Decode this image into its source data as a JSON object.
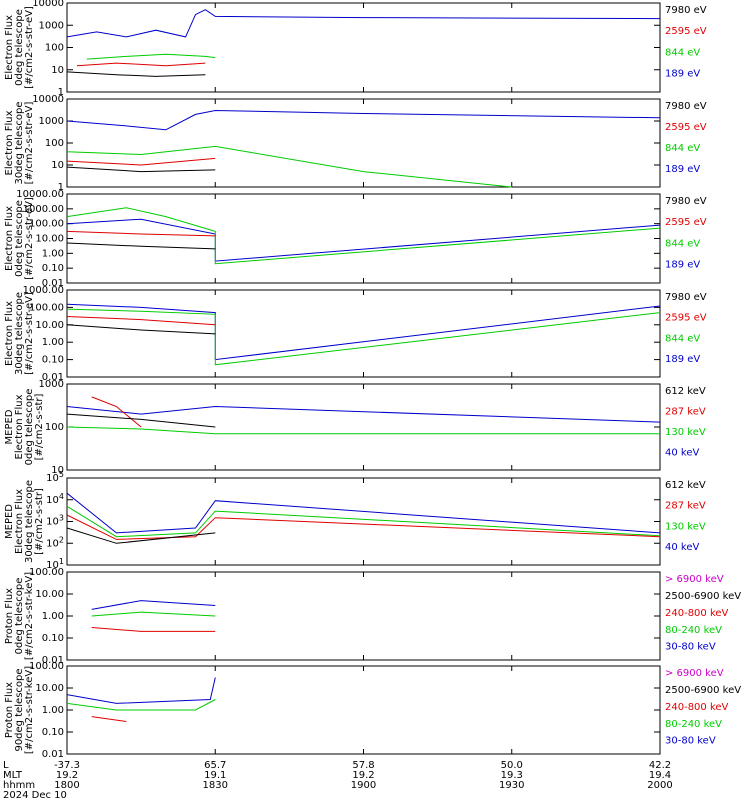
{
  "colors": {
    "black": "#000000",
    "red": "#e00000",
    "green": "#00cc00",
    "blue": "#0000cc",
    "magenta": "#cc00cc"
  },
  "chart_data": [
    {
      "type": "line",
      "ylabel": [
        "Electron Flux",
        "0deg telescope",
        "[#/cm2-s-str-eV]"
      ],
      "scale": "log",
      "ticks": [
        "1",
        "10",
        "100",
        "1000",
        "10000"
      ],
      "ylim": [
        1,
        10000
      ],
      "legend": [
        {
          "label": "7980 eV",
          "color": "black"
        },
        {
          "label": "2595 eV",
          "color": "red"
        },
        {
          "label": "844 eV",
          "color": "green"
        },
        {
          "label": "189 eV",
          "color": "blue"
        }
      ],
      "series": [
        {
          "name": "189 eV",
          "color": "blue",
          "values": [
            [
              1800,
              300
            ],
            [
              1806,
              500
            ],
            [
              1812,
              300
            ],
            [
              1818,
              600
            ],
            [
              1824,
              300
            ],
            [
              1826,
              3000
            ],
            [
              1828,
              5000
            ],
            [
              1830,
              2500
            ],
            [
              1900,
              2200
            ],
            [
              2000,
              2000
            ]
          ]
        },
        {
          "name": "844 eV",
          "color": "green",
          "values": [
            [
              1804,
              30
            ],
            [
              1812,
              40
            ],
            [
              1820,
              50
            ],
            [
              1828,
              40
            ],
            [
              1830,
              35
            ]
          ]
        },
        {
          "name": "2595 eV",
          "color": "red",
          "values": [
            [
              1802,
              15
            ],
            [
              1810,
              20
            ],
            [
              1820,
              15
            ],
            [
              1828,
              20
            ]
          ]
        },
        {
          "name": "7980 eV",
          "color": "black",
          "values": [
            [
              1800,
              8
            ],
            [
              1810,
              6
            ],
            [
              1818,
              5
            ],
            [
              1828,
              6
            ]
          ]
        }
      ]
    },
    {
      "type": "line",
      "ylabel": [
        "Electron Flux",
        "30deg telescope",
        "[#/cm2-s-str-eV]"
      ],
      "scale": "log",
      "ticks": [
        "1",
        "10",
        "100",
        "1000",
        "10000"
      ],
      "ylim": [
        1,
        10000
      ],
      "legend": [
        {
          "label": "7980 eV",
          "color": "black"
        },
        {
          "label": "2595 eV",
          "color": "red"
        },
        {
          "label": "844 eV",
          "color": "green"
        },
        {
          "label": "189 eV",
          "color": "blue"
        }
      ],
      "series": [
        {
          "name": "189 eV",
          "color": "blue",
          "values": [
            [
              1800,
              1000
            ],
            [
              1812,
              600
            ],
            [
              1820,
              400
            ],
            [
              1826,
              2000
            ],
            [
              1830,
              3000
            ],
            [
              1900,
              2200
            ],
            [
              2000,
              1400
            ]
          ]
        },
        {
          "name": "844 eV",
          "color": "green",
          "values": [
            [
              1800,
              40
            ],
            [
              1815,
              30
            ],
            [
              1830,
              70
            ],
            [
              1900,
              5
            ],
            [
              1930,
              1
            ]
          ]
        },
        {
          "name": "2595 eV",
          "color": "red",
          "values": [
            [
              1800,
              15
            ],
            [
              1815,
              10
            ],
            [
              1830,
              20
            ]
          ]
        },
        {
          "name": "7980 eV",
          "color": "black",
          "values": [
            [
              1800,
              8
            ],
            [
              1815,
              5
            ],
            [
              1830,
              6
            ]
          ]
        }
      ]
    },
    {
      "type": "line",
      "ylabel": [
        "Electron Flux",
        "0deg telescope",
        "[#/cm2-s-str-eV]"
      ],
      "scale": "log",
      "ticks": [
        "0.01",
        "0.10",
        "1.00",
        "10.00",
        "100.00",
        "1000.00",
        "10000.00"
      ],
      "ylim": [
        0.01,
        10000
      ],
      "legend": [
        {
          "label": "7980 eV",
          "color": "black"
        },
        {
          "label": "2595 eV",
          "color": "red"
        },
        {
          "label": "844 eV",
          "color": "green"
        },
        {
          "label": "189 eV",
          "color": "blue"
        }
      ],
      "series": [
        {
          "name": "189 eV",
          "color": "blue",
          "values": [
            [
              1800,
              100
            ],
            [
              1815,
              200
            ],
            [
              1830,
              20
            ],
            [
              1830,
              0.3
            ],
            [
              2000,
              80
            ]
          ]
        },
        {
          "name": "844 eV",
          "color": "green",
          "values": [
            [
              1800,
              300
            ],
            [
              1812,
              1200
            ],
            [
              1820,
              300
            ],
            [
              1830,
              30
            ],
            [
              1830,
              0.2
            ],
            [
              2000,
              50
            ]
          ]
        },
        {
          "name": "2595 eV",
          "color": "red",
          "values": [
            [
              1800,
              30
            ],
            [
              1815,
              20
            ],
            [
              1830,
              15
            ]
          ]
        },
        {
          "name": "7980 eV",
          "color": "black",
          "values": [
            [
              1800,
              5
            ],
            [
              1815,
              3
            ],
            [
              1830,
              2
            ]
          ]
        }
      ]
    },
    {
      "type": "line",
      "ylabel": [
        "Electron Flux",
        "30deg telescope",
        "[#/cm2-s-str-eV]"
      ],
      "scale": "log",
      "ticks": [
        "0.01",
        "0.10",
        "1.00",
        "10.00",
        "100.00",
        "1000.00"
      ],
      "ylim": [
        0.01,
        1000
      ],
      "legend": [
        {
          "label": "7980 eV",
          "color": "black"
        },
        {
          "label": "2595 eV",
          "color": "red"
        },
        {
          "label": "844 eV",
          "color": "green"
        },
        {
          "label": "189 eV",
          "color": "blue"
        }
      ],
      "series": [
        {
          "name": "189 eV",
          "color": "blue",
          "values": [
            [
              1800,
              150
            ],
            [
              1815,
              100
            ],
            [
              1830,
              50
            ],
            [
              1830,
              0.1
            ],
            [
              2000,
              120
            ]
          ]
        },
        {
          "name": "844 eV",
          "color": "green",
          "values": [
            [
              1800,
              80
            ],
            [
              1815,
              60
            ],
            [
              1830,
              40
            ],
            [
              1830,
              0.05
            ],
            [
              2000,
              50
            ]
          ]
        },
        {
          "name": "2595 eV",
          "color": "red",
          "values": [
            [
              1800,
              30
            ],
            [
              1815,
              20
            ],
            [
              1830,
              10
            ]
          ]
        },
        {
          "name": "7980 eV",
          "color": "black",
          "values": [
            [
              1800,
              10
            ],
            [
              1815,
              5
            ],
            [
              1830,
              3
            ]
          ]
        }
      ]
    },
    {
      "type": "line",
      "ylabel": [
        "MEPED",
        "Electron Flux",
        "0deg telescope",
        "[#/cm2-s-str]"
      ],
      "scale": "log",
      "ticks": [
        "10",
        "100",
        "1000"
      ],
      "ylim": [
        10,
        1000
      ],
      "legend": [
        {
          "label": "612 keV",
          "color": "black"
        },
        {
          "label": "287 keV",
          "color": "red"
        },
        {
          "label": "130 keV",
          "color": "green"
        },
        {
          "label": "40 keV",
          "color": "blue"
        }
      ],
      "series": [
        {
          "name": "40 keV",
          "color": "blue",
          "values": [
            [
              1800,
              300
            ],
            [
              1815,
              200
            ],
            [
              1830,
              300
            ],
            [
              2000,
              130
            ]
          ]
        },
        {
          "name": "130 keV",
          "color": "green",
          "values": [
            [
              1800,
              100
            ],
            [
              1815,
              90
            ],
            [
              1830,
              70
            ],
            [
              2000,
              70
            ]
          ]
        },
        {
          "name": "287 keV",
          "color": "red",
          "values": [
            [
              1805,
              500
            ],
            [
              1810,
              300
            ],
            [
              1815,
              100
            ]
          ]
        },
        {
          "name": "612 keV",
          "color": "black",
          "values": [
            [
              1800,
              200
            ],
            [
              1815,
              150
            ],
            [
              1830,
              100
            ]
          ]
        }
      ]
    },
    {
      "type": "line",
      "ylabel": [
        "MEPED",
        "Electron Flux",
        "30deg telescope",
        "[#/cm2-s-str]"
      ],
      "scale": "log",
      "ticks": [
        "10^1",
        "10^2",
        "10^3",
        "10^4",
        "10^5"
      ],
      "ylim": [
        10,
        100000
      ],
      "legend": [
        {
          "label": "612 keV",
          "color": "black"
        },
        {
          "label": "287 keV",
          "color": "red"
        },
        {
          "label": "130 keV",
          "color": "green"
        },
        {
          "label": "40 keV",
          "color": "blue"
        }
      ],
      "series": [
        {
          "name": "40 keV",
          "color": "blue",
          "values": [
            [
              1800,
              20000
            ],
            [
              1810,
              300
            ],
            [
              1826,
              500
            ],
            [
              1830,
              9000
            ],
            [
              2000,
              300
            ]
          ]
        },
        {
          "name": "130 keV",
          "color": "green",
          "values": [
            [
              1800,
              5000
            ],
            [
              1810,
              200
            ],
            [
              1826,
              300
            ],
            [
              1830,
              3000
            ],
            [
              2000,
              220
            ]
          ]
        },
        {
          "name": "287 keV",
          "color": "red",
          "values": [
            [
              1800,
              2000
            ],
            [
              1810,
              150
            ],
            [
              1826,
              200
            ],
            [
              1830,
              1500
            ],
            [
              2000,
              200
            ]
          ]
        },
        {
          "name": "612 keV",
          "color": "black",
          "values": [
            [
              1800,
              500
            ],
            [
              1810,
              100
            ],
            [
              1830,
              300
            ]
          ]
        }
      ]
    },
    {
      "type": "line",
      "ylabel": [
        "Proton Flux",
        "0deg telescope",
        "[#/cm2-s-str-keV]"
      ],
      "scale": "log",
      "ticks": [
        "0.01",
        "0.10",
        "1.00",
        "10.00",
        "100.00"
      ],
      "ylim": [
        0.01,
        100
      ],
      "legend": [
        {
          "label": "> 6900 keV",
          "color": "magenta"
        },
        {
          "label": "2500-6900 keV",
          "color": "black"
        },
        {
          "label": "240-800 keV",
          "color": "red"
        },
        {
          "label": "80-240 keV",
          "color": "green"
        },
        {
          "label": "30-80 keV",
          "color": "blue"
        }
      ],
      "series": [
        {
          "name": "30-80 keV",
          "color": "blue",
          "values": [
            [
              1805,
              2
            ],
            [
              1815,
              5
            ],
            [
              1830,
              3
            ]
          ]
        },
        {
          "name": "80-240 keV",
          "color": "green",
          "values": [
            [
              1805,
              1
            ],
            [
              1815,
              1.5
            ],
            [
              1830,
              1
            ]
          ]
        },
        {
          "name": "240-800 keV",
          "color": "red",
          "values": [
            [
              1805,
              0.3
            ],
            [
              1815,
              0.2
            ],
            [
              1830,
              0.2
            ]
          ]
        }
      ]
    },
    {
      "type": "line",
      "ylabel": [
        "Proton Flux",
        "90deg telescope",
        "[#/cm2-s-str-keV]"
      ],
      "scale": "log",
      "ticks": [
        "0.01",
        "0.10",
        "1.00",
        "10.00",
        "100.00"
      ],
      "ylim": [
        0.01,
        100
      ],
      "legend": [
        {
          "label": "> 6900 keV",
          "color": "magenta"
        },
        {
          "label": "2500-6900 keV",
          "color": "black"
        },
        {
          "label": "240-800 keV",
          "color": "red"
        },
        {
          "label": "80-240 keV",
          "color": "green"
        },
        {
          "label": "30-80 keV",
          "color": "blue"
        }
      ],
      "series": [
        {
          "name": "30-80 keV",
          "color": "blue",
          "values": [
            [
              1800,
              5
            ],
            [
              1810,
              2
            ],
            [
              1829,
              3
            ],
            [
              1830,
              30
            ]
          ]
        },
        {
          "name": "80-240 keV",
          "color": "green",
          "values": [
            [
              1800,
              2
            ],
            [
              1810,
              1
            ],
            [
              1826,
              1
            ],
            [
              1830,
              3
            ]
          ]
        },
        {
          "name": "240-800 keV",
          "color": "red",
          "values": [
            [
              1805,
              0.5
            ],
            [
              1812,
              0.3
            ]
          ]
        }
      ]
    }
  ],
  "xaxis": {
    "ticks": [
      1800,
      1830,
      1900,
      1930,
      2000
    ],
    "rows": [
      {
        "label": "L",
        "values": [
          "-37.3",
          "65.7",
          "57.8",
          "50.0",
          "42.2"
        ]
      },
      {
        "label": "MLT",
        "values": [
          "19.2",
          "19.1",
          "19.2",
          "19.3",
          "19.4"
        ]
      },
      {
        "label": "hhmm",
        "values": [
          "1800",
          "1830",
          "1900",
          "1930",
          "2000"
        ]
      }
    ],
    "date": "2024 Dec 10"
  }
}
